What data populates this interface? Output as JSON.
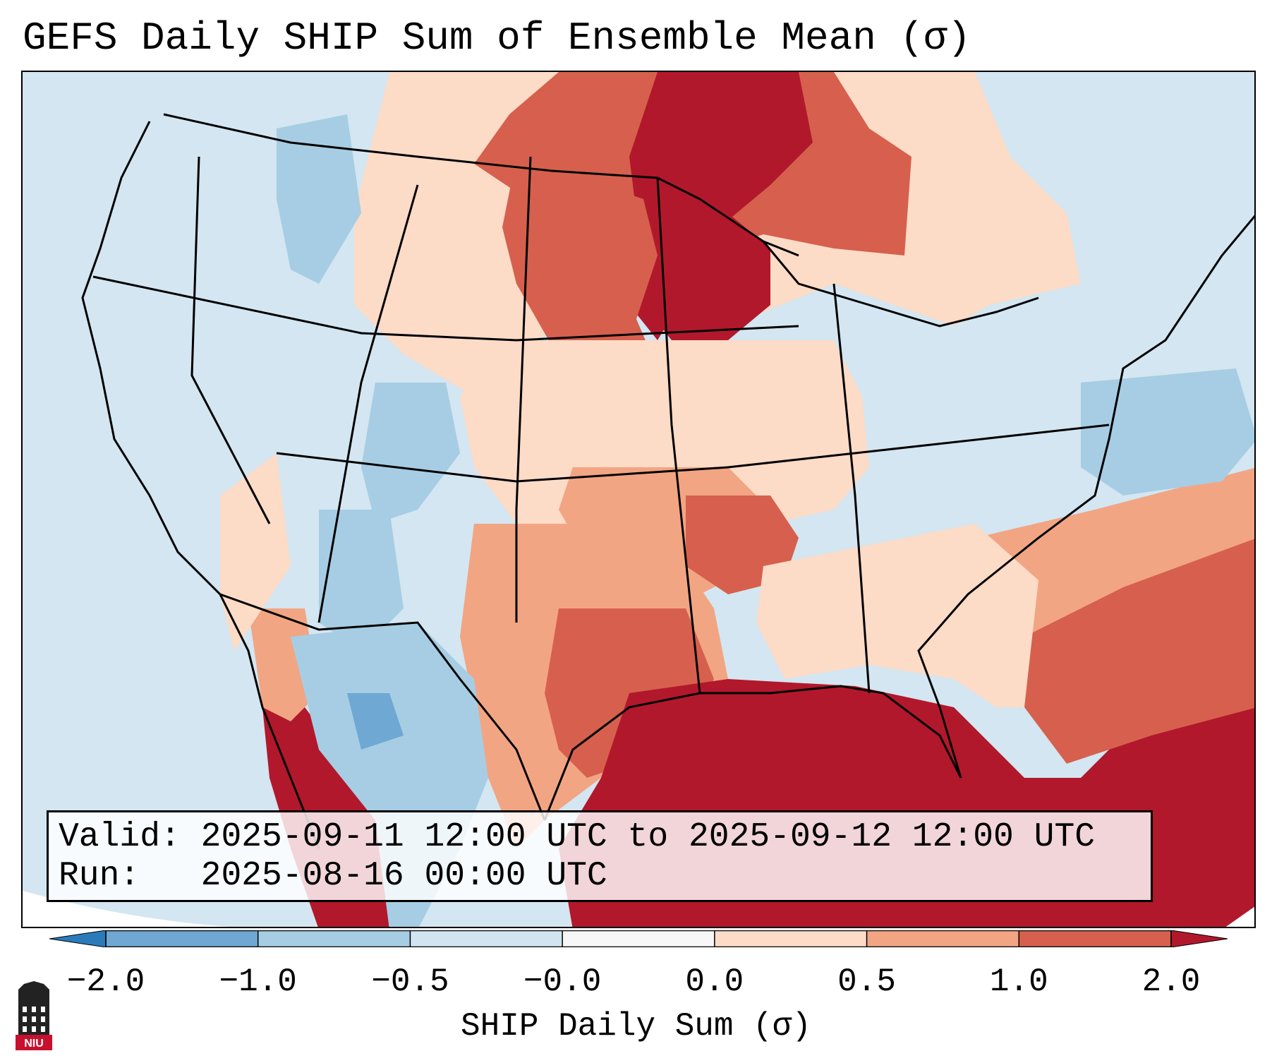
{
  "title": "GEFS Daily SHIP Sum of Ensemble Mean (σ)",
  "info": {
    "valid_label": "Valid:",
    "valid_value": "2025-09-11 12:00 UTC to 2025-09-12 12:00 UTC",
    "run_label": "Run:",
    "run_value": "2025-08-16 00:00 UTC"
  },
  "colorbar": {
    "label": "SHIP Daily Sum (σ)",
    "ticks": [
      "−2.0",
      "−1.0",
      "−0.5",
      "−0.0",
      "0.0",
      "0.5",
      "1.0",
      "2.0"
    ],
    "levels": [
      -2.0,
      -1.0,
      -0.5,
      -0.0,
      0.0,
      0.5,
      1.0,
      2.0
    ],
    "colors": [
      "#2b7bba",
      "#6ea8d3",
      "#a6cde3",
      "#d1e5f0",
      "#f7f7f7",
      "#fcdbc7",
      "#f2a583",
      "#d6604d",
      "#b2182b"
    ],
    "extend": "both"
  },
  "logo": {
    "text": "NIU"
  },
  "map": {
    "region": "Continental United States",
    "colors": {
      "land_neutral": "#d3e6f1",
      "strong_pos": "#b2182b",
      "pos": "#d6604d",
      "mild_pos": "#f2a583",
      "weak_pos": "#fcdbc7",
      "weak_neg": "#a6cde3",
      "neg": "#6ea8d3",
      "strong_neg": "#2b7bba",
      "border": "#000000"
    }
  }
}
